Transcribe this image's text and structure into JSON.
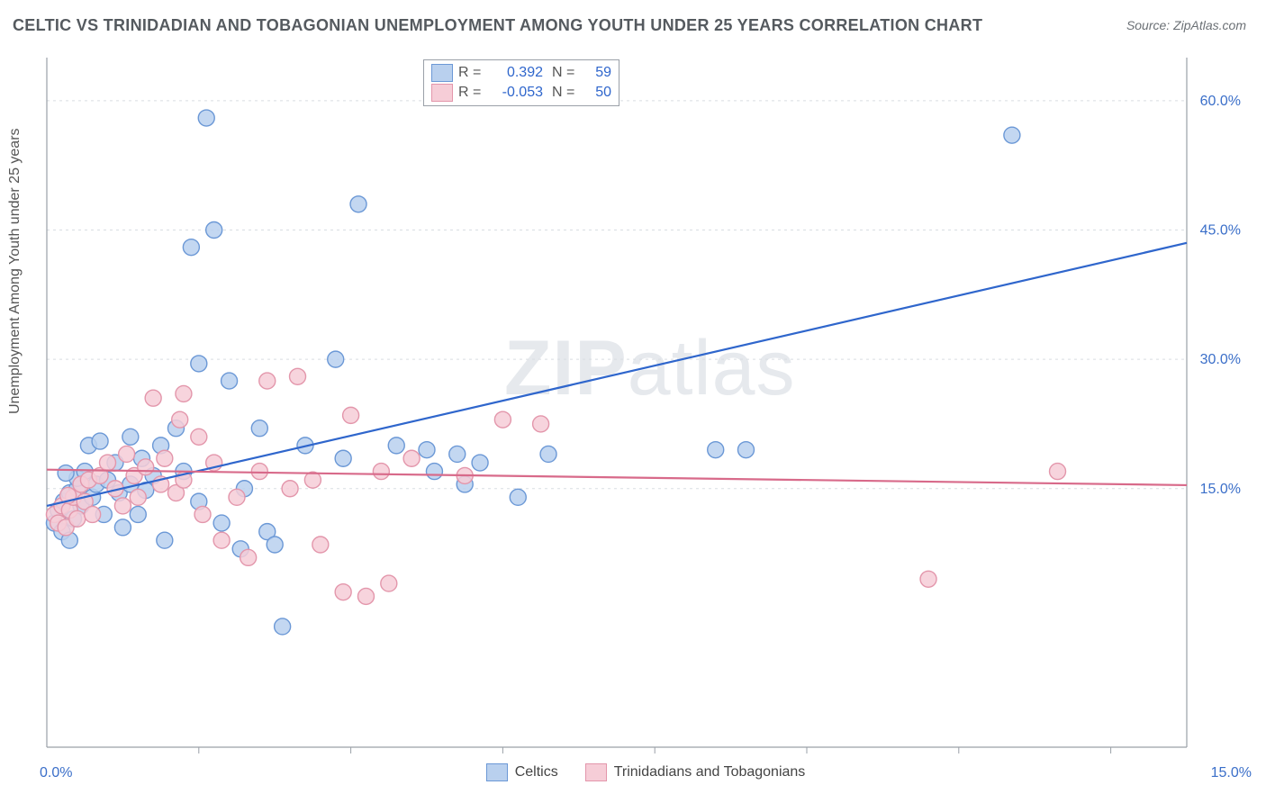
{
  "title": "CELTIC VS TRINIDADIAN AND TOBAGONIAN UNEMPLOYMENT AMONG YOUTH UNDER 25 YEARS CORRELATION CHART",
  "source_label": "Source: ZipAtlas.com",
  "ylabel": "Unemployment Among Youth under 25 years",
  "watermark": {
    "bold": "ZIP",
    "thin": "atlas"
  },
  "chart": {
    "type": "scatter",
    "xlim": [
      0,
      15
    ],
    "ylim": [
      -15,
      65
    ],
    "xticks": [
      2,
      4,
      6,
      8,
      10,
      12,
      14
    ],
    "yticks": [
      15,
      30,
      45,
      60
    ],
    "ytick_labels": [
      "15.0%",
      "30.0%",
      "45.0%",
      "60.0%"
    ],
    "x_minlabel": "0.0%",
    "x_maxlabel": "15.0%",
    "grid_color": "#d9dde2",
    "axis_color": "#9aa0a8",
    "background_color": "#ffffff",
    "marker_radius": 9,
    "marker_stroke_width": 1.4,
    "trend_stroke_width": 2.2,
    "series": {
      "a": {
        "label": "Celtics",
        "fill": "#b9d0ee",
        "stroke": "#6b98d6",
        "line_color": "#2f66cc",
        "R": "0.392",
        "N": "59",
        "trend": {
          "x1": 0,
          "y1": 13.0,
          "x2": 15,
          "y2": 43.5
        },
        "points": [
          [
            0.1,
            11.0
          ],
          [
            0.15,
            12.5
          ],
          [
            0.2,
            10.0
          ],
          [
            0.22,
            13.5
          ],
          [
            0.3,
            9.0
          ],
          [
            0.3,
            14.5
          ],
          [
            0.35,
            11.5
          ],
          [
            0.4,
            15.0
          ],
          [
            0.4,
            16.2
          ],
          [
            0.45,
            13.0
          ],
          [
            0.5,
            17.0
          ],
          [
            0.55,
            20.0
          ],
          [
            0.6,
            14.0
          ],
          [
            0.65,
            15.5
          ],
          [
            0.7,
            20.5
          ],
          [
            0.75,
            12.0
          ],
          [
            0.8,
            16.0
          ],
          [
            0.9,
            18.0
          ],
          [
            0.95,
            14.5
          ],
          [
            1.0,
            10.5
          ],
          [
            1.1,
            15.5
          ],
          [
            1.1,
            21.0
          ],
          [
            1.2,
            12.0
          ],
          [
            1.25,
            18.5
          ],
          [
            1.3,
            14.8
          ],
          [
            1.4,
            16.5
          ],
          [
            1.5,
            20.0
          ],
          [
            1.55,
            9.0
          ],
          [
            1.7,
            22.0
          ],
          [
            1.8,
            17.0
          ],
          [
            1.9,
            43.0
          ],
          [
            2.0,
            13.5
          ],
          [
            2.0,
            29.5
          ],
          [
            2.1,
            58.0
          ],
          [
            2.2,
            45.0
          ],
          [
            2.3,
            11.0
          ],
          [
            2.4,
            27.5
          ],
          [
            2.55,
            8.0
          ],
          [
            2.6,
            15.0
          ],
          [
            2.8,
            22.0
          ],
          [
            2.9,
            10.0
          ],
          [
            3.0,
            8.5
          ],
          [
            3.1,
            -1.0
          ],
          [
            3.4,
            20.0
          ],
          [
            3.8,
            30.0
          ],
          [
            3.9,
            18.5
          ],
          [
            4.1,
            48.0
          ],
          [
            4.6,
            20.0
          ],
          [
            5.0,
            19.5
          ],
          [
            5.1,
            17.0
          ],
          [
            5.4,
            19.0
          ],
          [
            5.5,
            15.5
          ],
          [
            5.7,
            18.0
          ],
          [
            6.2,
            14.0
          ],
          [
            8.8,
            19.5
          ],
          [
            9.2,
            19.5
          ],
          [
            12.7,
            56.0
          ],
          [
            6.6,
            19.0
          ],
          [
            0.25,
            16.8
          ]
        ]
      },
      "b": {
        "label": "Trinidadians and Tobagonians",
        "fill": "#f6cdd7",
        "stroke": "#e396ab",
        "line_color": "#d86a8a",
        "R": "-0.053",
        "N": "50",
        "trend": {
          "x1": 0,
          "y1": 17.2,
          "x2": 15,
          "y2": 15.4
        },
        "points": [
          [
            0.1,
            12.0
          ],
          [
            0.15,
            11.0
          ],
          [
            0.2,
            13.0
          ],
          [
            0.25,
            10.5
          ],
          [
            0.3,
            12.5
          ],
          [
            0.35,
            14.0
          ],
          [
            0.4,
            11.5
          ],
          [
            0.45,
            15.5
          ],
          [
            0.5,
            13.5
          ],
          [
            0.55,
            16.0
          ],
          [
            0.6,
            12.0
          ],
          [
            0.7,
            16.5
          ],
          [
            0.8,
            18.0
          ],
          [
            0.9,
            15.0
          ],
          [
            1.0,
            13.0
          ],
          [
            1.05,
            19.0
          ],
          [
            1.15,
            16.5
          ],
          [
            1.2,
            14.0
          ],
          [
            1.3,
            17.5
          ],
          [
            1.4,
            25.5
          ],
          [
            1.5,
            15.5
          ],
          [
            1.55,
            18.5
          ],
          [
            1.7,
            14.5
          ],
          [
            1.75,
            23.0
          ],
          [
            1.8,
            16.0
          ],
          [
            1.8,
            26.0
          ],
          [
            2.0,
            21.0
          ],
          [
            2.05,
            12.0
          ],
          [
            2.2,
            18.0
          ],
          [
            2.3,
            9.0
          ],
          [
            2.5,
            14.0
          ],
          [
            2.65,
            7.0
          ],
          [
            2.8,
            17.0
          ],
          [
            2.9,
            27.5
          ],
          [
            3.2,
            15.0
          ],
          [
            3.3,
            28.0
          ],
          [
            3.5,
            16.0
          ],
          [
            3.6,
            8.5
          ],
          [
            3.9,
            3.0
          ],
          [
            4.0,
            23.5
          ],
          [
            4.2,
            2.5
          ],
          [
            4.4,
            17.0
          ],
          [
            4.5,
            4.0
          ],
          [
            4.8,
            18.5
          ],
          [
            5.5,
            16.5
          ],
          [
            6.0,
            23.0
          ],
          [
            6.5,
            22.5
          ],
          [
            11.6,
            4.5
          ],
          [
            13.3,
            17.0
          ],
          [
            0.28,
            14.2
          ]
        ]
      }
    }
  }
}
